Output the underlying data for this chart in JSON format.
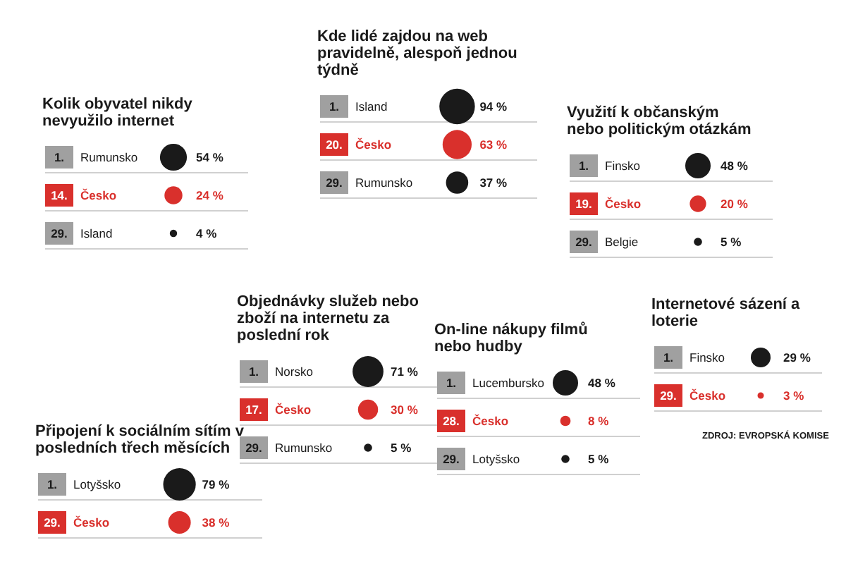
{
  "chart_data": [
    {
      "type": "other",
      "title": "Kolik obyvatel nikdy nevyužilo internet",
      "categories": [
        "Rumunsko",
        "Česko",
        "Island"
      ],
      "values": [
        54,
        24,
        4
      ],
      "value_labels": [
        "54 %",
        "24 %",
        "4 %"
      ],
      "colors": [
        "#1a1a1a",
        "#d9302c",
        "#1a1a1a"
      ],
      "annotations": [
        "1.",
        "14.",
        "29."
      ]
    },
    {
      "type": "other",
      "title": "Kde lidé zajdou na web pravidelně, alespoň jednou týdně",
      "categories": [
        "Island",
        "Česko",
        "Rumunsko"
      ],
      "values": [
        94,
        63,
        37
      ],
      "value_labels": [
        "94 %",
        "63 %",
        "37 %"
      ],
      "colors": [
        "#1a1a1a",
        "#d9302c",
        "#1a1a1a"
      ],
      "annotations": [
        "1.",
        "20.",
        "29."
      ]
    },
    {
      "type": "other",
      "title": "Využití k občanským nebo politickým otázkám",
      "categories": [
        "Finsko",
        "Česko",
        "Belgie"
      ],
      "values": [
        48,
        20,
        5
      ],
      "value_labels": [
        "48 %",
        "20 %",
        "5 %"
      ],
      "colors": [
        "#1a1a1a",
        "#d9302c",
        "#1a1a1a"
      ],
      "annotations": [
        "1.",
        "19.",
        "29."
      ]
    },
    {
      "type": "other",
      "title": "Objednávky služeb nebo zboží na internetu za poslední rok",
      "categories": [
        "Norsko",
        "Česko",
        "Rumunsko"
      ],
      "values": [
        71,
        30,
        5
      ],
      "value_labels": [
        "71 %",
        "30 %",
        "5 %"
      ],
      "colors": [
        "#1a1a1a",
        "#d9302c",
        "#1a1a1a"
      ],
      "annotations": [
        "1.",
        "17.",
        "29."
      ]
    },
    {
      "type": "other",
      "title": "On-line nákupy filmů nebo hudby",
      "categories": [
        "Lucembursko",
        "Česko",
        "Lotyšsko"
      ],
      "values": [
        48,
        8,
        5
      ],
      "value_labels": [
        "48 %",
        "8 %",
        "5 %"
      ],
      "colors": [
        "#1a1a1a",
        "#d9302c",
        "#1a1a1a"
      ],
      "annotations": [
        "1.",
        "28.",
        "29."
      ]
    },
    {
      "type": "other",
      "title": "Internetové sázení a loterie",
      "categories": [
        "Finsko",
        "Česko"
      ],
      "values": [
        29,
        3
      ],
      "value_labels": [
        "29 %",
        "3 %"
      ],
      "colors": [
        "#1a1a1a",
        "#d9302c"
      ],
      "annotations": [
        "1.",
        "29.",
        "ZDROJ: EVROPSKÁ KOMISE"
      ]
    },
    {
      "type": "other",
      "title": "Připojení k sociálním sítím v posledních třech měsících",
      "categories": [
        "Lotyšsko",
        "Česko"
      ],
      "values": [
        79,
        38
      ],
      "value_labels": [
        "79 %",
        "38 %"
      ],
      "colors": [
        "#1a1a1a",
        "#d9302c"
      ],
      "annotations": [
        "1.",
        "29."
      ]
    }
  ]
}
